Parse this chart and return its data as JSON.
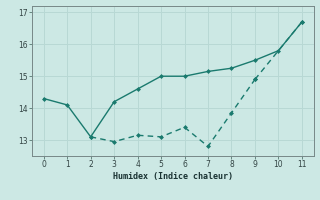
{
  "xlabel": "Humidex (Indice chaleur)",
  "x": [
    0,
    1,
    2,
    3,
    4,
    5,
    6,
    7,
    8,
    9,
    10,
    11
  ],
  "series1_x": [
    0,
    1,
    2,
    3,
    4,
    5,
    6,
    7,
    8,
    9,
    10,
    11
  ],
  "series1_y": [
    14.3,
    14.1,
    13.1,
    14.2,
    14.6,
    15.0,
    15.0,
    15.15,
    15.25,
    15.5,
    15.8,
    16.7
  ],
  "series2_x": [
    2,
    3,
    4,
    5,
    6,
    7,
    8,
    9,
    11
  ],
  "series2_y": [
    13.1,
    12.95,
    13.15,
    13.1,
    13.4,
    12.8,
    13.85,
    14.9,
    16.7
  ],
  "line_color": "#1a7a6e",
  "bg_color": "#cce8e4",
  "grid_color": "#b8d8d4",
  "ylim": [
    12.5,
    17.2
  ],
  "xlim": [
    -0.5,
    11.5
  ],
  "yticks": [
    13,
    14,
    15,
    16,
    17
  ],
  "xticks": [
    0,
    1,
    2,
    3,
    4,
    5,
    6,
    7,
    8,
    9,
    10,
    11
  ]
}
